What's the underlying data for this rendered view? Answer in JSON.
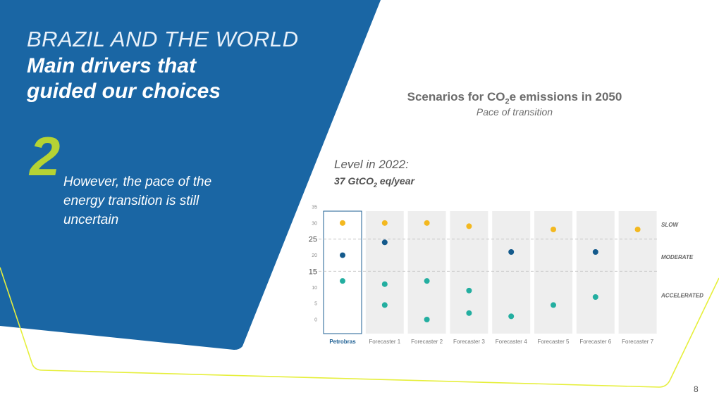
{
  "slide": {
    "title_line1": "BRAZIL AND THE WORLD",
    "title_line2": "Main drivers that guided our choices",
    "number": "2",
    "subtitle": "However, the pace of the energy transition is still uncertain",
    "page_number": "8"
  },
  "colors": {
    "blue_panel": "#1a66a4",
    "accent_green": "#b5d334",
    "line_yellow": "#e6ef3c",
    "dot_slow": "#f3b81f",
    "dot_moderate": "#145a8c",
    "dot_accelerated": "#23aea0",
    "column_bg": "#eeeeee",
    "highlight_border": "#1d5f93"
  },
  "chart_data": {
    "type": "scatter",
    "title_prefix": "Scenarios for CO",
    "title_sub": "2",
    "title_suffix": "e emissions in 2050",
    "subtitle": "Pace of transition",
    "level_label": "Level in 2022:",
    "level_value_prefix": "37 GtCO",
    "level_value_sub": "2",
    "level_value_suffix": " eq/year",
    "categories": [
      "Petrobras",
      "Forecaster 1",
      "Forecaster 2",
      "Forecaster 3",
      "Forecaster 4",
      "Forecaster 5",
      "Forecaster 6",
      "Forecaster 7"
    ],
    "highlight_category": "Petrobras",
    "y_ticks": [
      "35",
      "30",
      "25",
      "20",
      "15",
      "10",
      "5",
      "0"
    ],
    "y_tick_values": [
      35,
      30,
      25,
      20,
      15,
      10,
      5,
      0
    ],
    "emphasized_ticks": [
      25,
      15
    ],
    "ylim": [
      0,
      35
    ],
    "reference_lines": [
      25,
      15
    ],
    "zones": [
      {
        "label": "SLOW",
        "value": 29.5
      },
      {
        "label": "MODERATE",
        "value": 19.5
      },
      {
        "label": "ACCELERATED",
        "value": 7.5
      }
    ],
    "series": [
      {
        "name": "Slow",
        "color_key": "dot_slow",
        "values": [
          30,
          30,
          30,
          29,
          null,
          28,
          null,
          28
        ]
      },
      {
        "name": "Moderate",
        "color_key": "dot_moderate",
        "values": [
          20,
          24,
          null,
          null,
          21,
          null,
          21,
          null
        ]
      },
      {
        "name": "Accelerated",
        "color_key": "dot_accelerated",
        "values": [
          12,
          11,
          12,
          9,
          1,
          4.5,
          7,
          null
        ]
      },
      {
        "name": "Accelerated (lower)",
        "color_key": "dot_accelerated",
        "values": [
          null,
          4.5,
          0,
          2,
          null,
          null,
          null,
          null
        ]
      }
    ]
  }
}
